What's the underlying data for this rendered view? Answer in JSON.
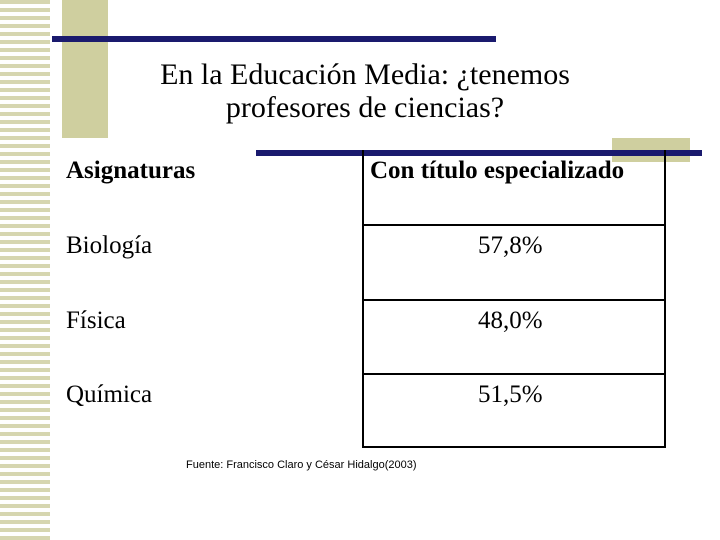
{
  "slide": {
    "title_line1": "En la Educación Media:  ¿tenemos",
    "title_line2": "profesores de ciencias?"
  },
  "table": {
    "headers": [
      "Asignaturas",
      "Con título especializado"
    ],
    "rows": [
      {
        "subject": "Biología",
        "value": "57,8%"
      },
      {
        "subject": "Física",
        "value": "48,0%"
      },
      {
        "subject": "Química",
        "value": "51,5%"
      }
    ]
  },
  "source": "Fuente:  Francisco Claro  y César Hidalgo(2003)",
  "colors": {
    "accent_rule": "#1a1a6e",
    "khaki": "#cfcf9f",
    "stripe": "#d6d6b0"
  }
}
